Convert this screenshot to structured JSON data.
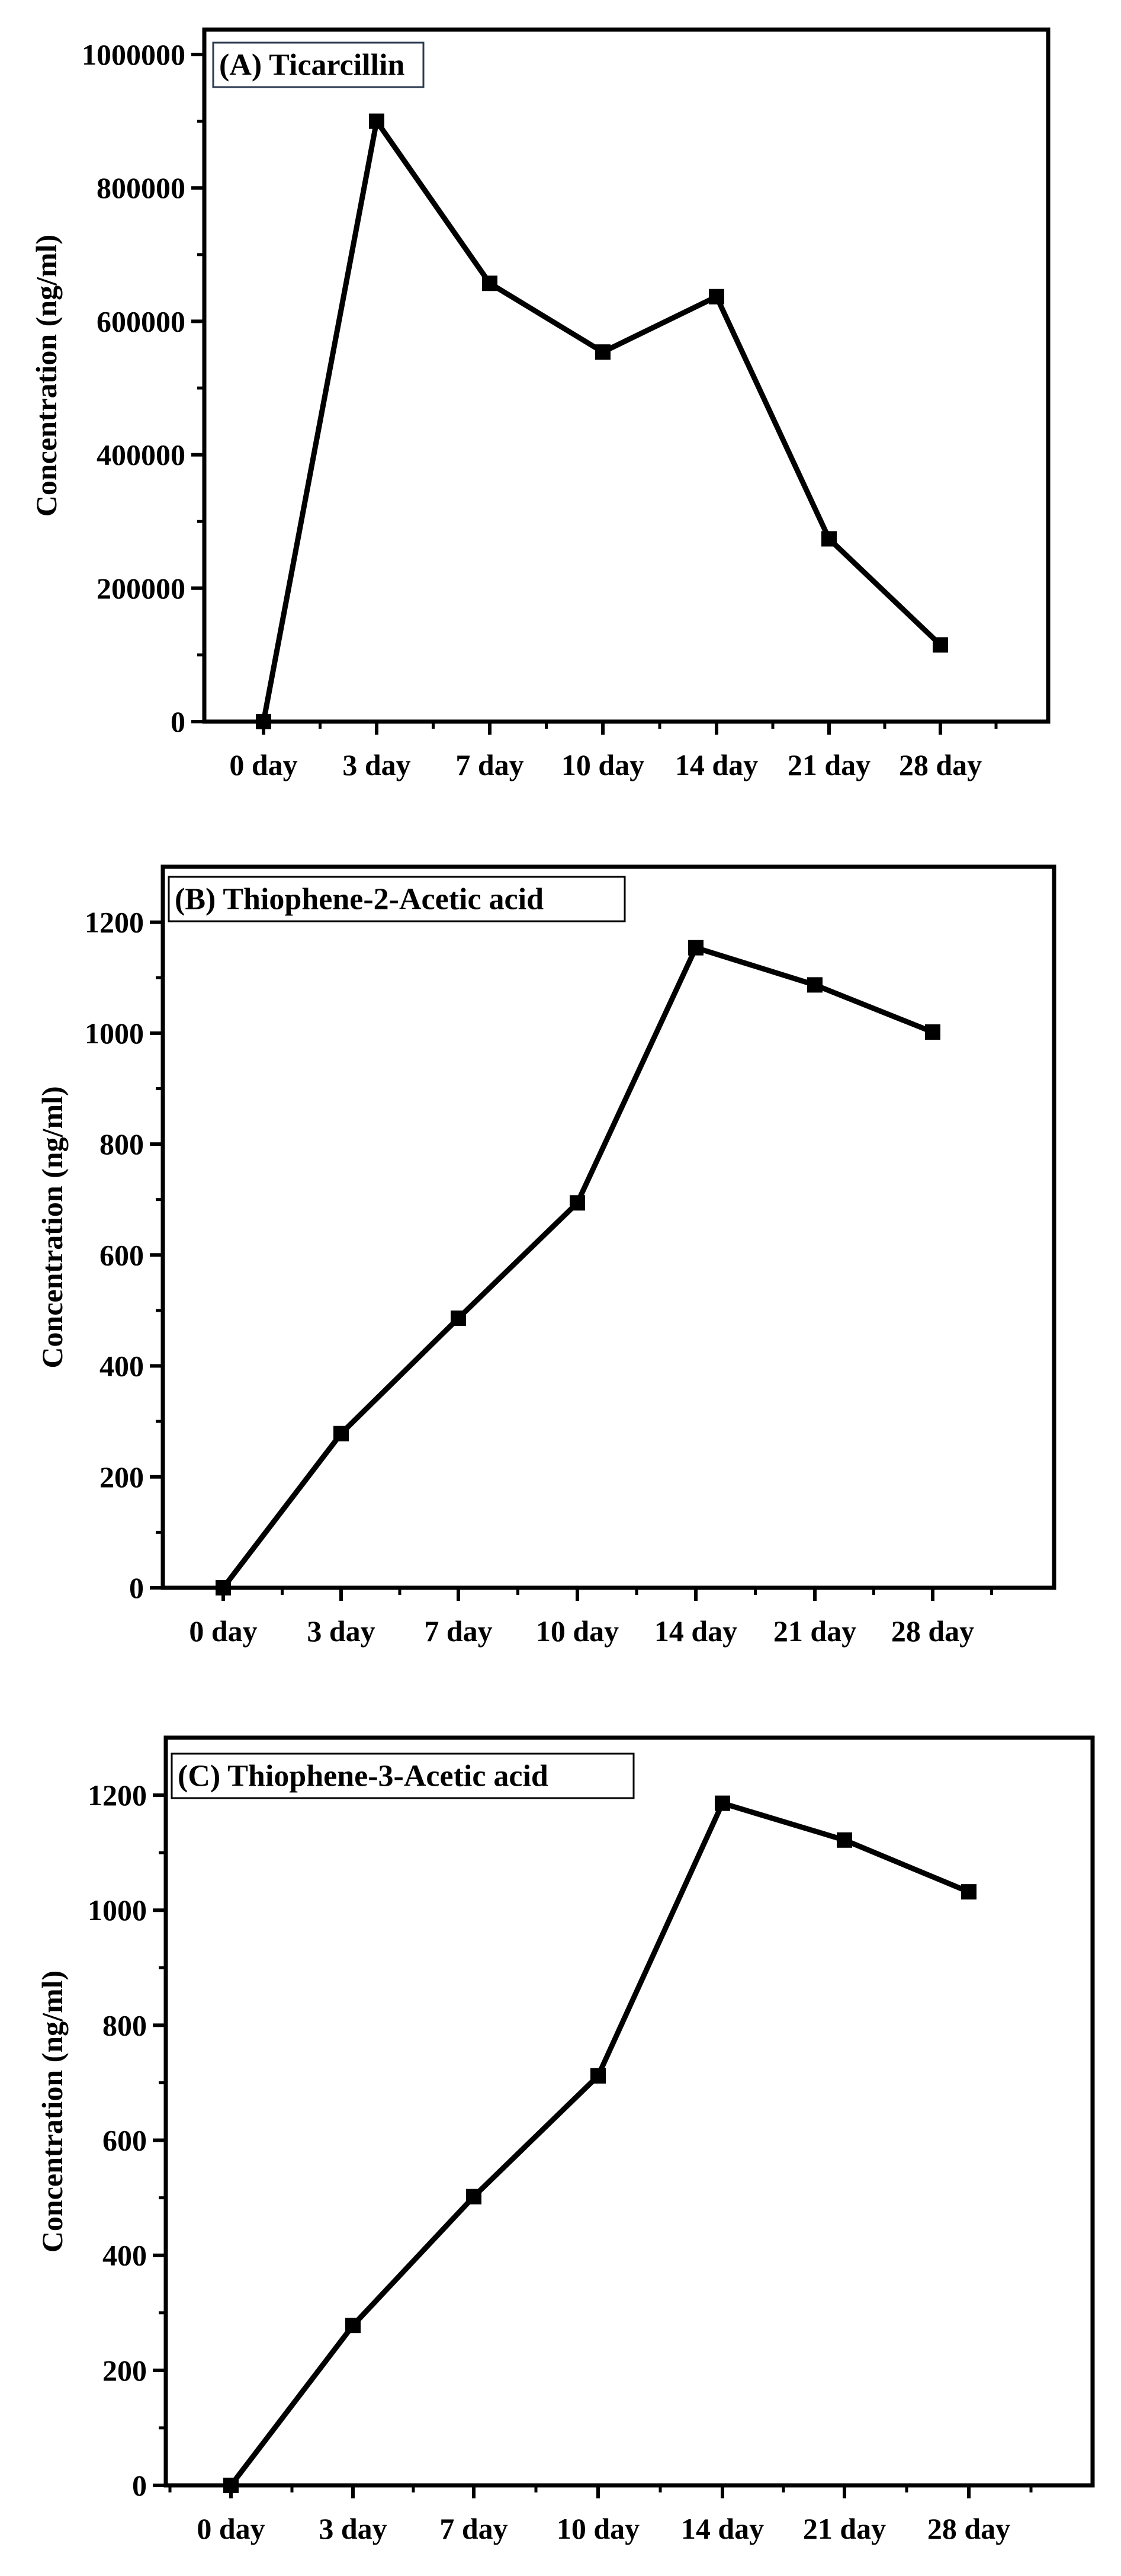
{
  "chart_data": [
    {
      "type": "line",
      "title": "(A) Ticarcillin",
      "xlabel": "",
      "ylabel": "Concentration (ng/ml)",
      "categories": [
        "0 day",
        "3 day",
        "7 day",
        "10 day",
        "14 day",
        "21 day",
        "28 day"
      ],
      "series": [
        {
          "values": [
            0,
            900000,
            657000,
            554000,
            637000,
            274000,
            115000
          ]
        }
      ],
      "ylim": [
        0,
        1000000
      ],
      "yticks": [
        0,
        200000,
        400000,
        600000,
        800000,
        1000000
      ],
      "ytick_labels": [
        "0",
        "200000",
        "400000",
        "600000",
        "800000",
        "1000000"
      ],
      "grid": false,
      "legend": "none"
    },
    {
      "type": "line",
      "title": "(B) Thiophene-2-Acetic acid",
      "xlabel": "",
      "ylabel": "Concentration (ng/ml)",
      "categories": [
        "0 day",
        "3 day",
        "7 day",
        "10 day",
        "14 day",
        "21 day",
        "28 day"
      ],
      "series": [
        {
          "values": [
            0,
            278,
            486,
            694,
            1154,
            1087,
            1002
          ]
        }
      ],
      "ylim": [
        0,
        1300
      ],
      "yticks": [
        0,
        200,
        400,
        600,
        800,
        1000,
        1200
      ],
      "ytick_labels": [
        "0",
        "200",
        "400",
        "600",
        "800",
        "1000",
        "1200"
      ],
      "grid": false,
      "legend": "none"
    },
    {
      "type": "line",
      "title": "(C) Thiophene-3-Acetic acid",
      "xlabel": "",
      "ylabel": "Concentration (ng/ml)",
      "categories": [
        "0 day",
        "3 day",
        "7 day",
        "10 day",
        "14 day",
        "21 day",
        "28 day"
      ],
      "series": [
        {
          "values": [
            0,
            278,
            502,
            712,
            1186,
            1122,
            1032
          ]
        }
      ],
      "ylim": [
        0,
        1300
      ],
      "yticks": [
        0,
        200,
        400,
        600,
        800,
        1000,
        1200
      ],
      "ytick_labels": [
        "0",
        "200",
        "400",
        "600",
        "800",
        "1000",
        "1200"
      ],
      "grid": false,
      "legend": "none"
    }
  ]
}
